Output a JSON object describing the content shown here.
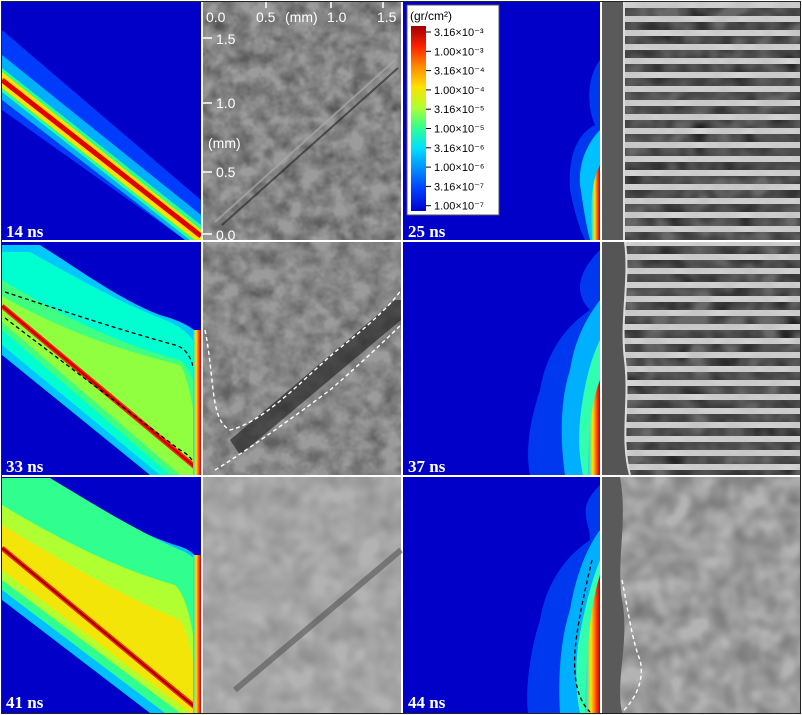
{
  "panels": [
    {
      "time_label": "14 ns"
    },
    {
      "time_label": "25 ns"
    },
    {
      "time_label": "33 ns"
    },
    {
      "time_label": "37 ns"
    },
    {
      "time_label": "41 ns"
    },
    {
      "time_label": "44 ns"
    }
  ],
  "axes": {
    "unit_x": "(mm)",
    "unit_y": "(mm)",
    "x_ticks": [
      "0.0",
      "0.5",
      "1.0",
      "1.5"
    ],
    "y_ticks": [
      "1.5",
      "1.0",
      "0.5",
      "0.0"
    ]
  },
  "colorbar": {
    "unit": "(gr/cm²)",
    "ticks": [
      "3.16×10⁻³",
      "1.00×10⁻³",
      "3.16×10⁻⁴",
      "1.00×10⁻⁴",
      "3.16×10⁻⁵",
      "1.00×10⁻⁵",
      "3.16×10⁻⁶",
      "1.00×10⁻⁶",
      "3.16×10⁻⁷",
      "1.00×10⁻⁷"
    ],
    "colors": [
      "#a00000",
      "#ff2000",
      "#ff8c00",
      "#ffe000",
      "#b0ff30",
      "#30ff90",
      "#00e0ff",
      "#0090ff",
      "#0040ff",
      "#0000d0"
    ]
  }
}
